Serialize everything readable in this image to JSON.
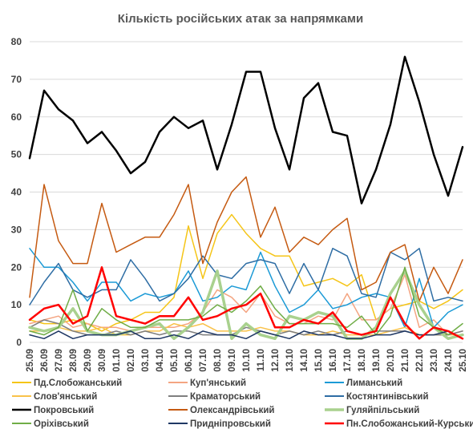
{
  "chart_data": {
    "type": "line",
    "title": "Кількість російських атак за напрямками",
    "xlabel": "",
    "ylabel": "",
    "ylim": [
      0,
      80
    ],
    "yticks": [
      0,
      10,
      20,
      30,
      40,
      50,
      60,
      70,
      80
    ],
    "grid": "horizontal",
    "legend_position": "bottom",
    "categories": [
      "25.09",
      "26.09",
      "27.09",
      "28.09",
      "29.09",
      "30.09",
      "01.10",
      "02.10",
      "03.10",
      "04.10",
      "05.10",
      "06.10",
      "07.10",
      "08.10",
      "09.10",
      "10.10",
      "11.10",
      "12.10",
      "13.10",
      "14.10",
      "15.10",
      "16.10",
      "17.10",
      "18.10",
      "19.10",
      "20.10",
      "21.10",
      "22.10",
      "23.10",
      "24.10",
      "25.10"
    ],
    "series": [
      {
        "name": "Пд.Слобожанський",
        "color": "#f5c518",
        "width": 1.5,
        "values": [
          6,
          5,
          5,
          6,
          5,
          3,
          5,
          6,
          8,
          8,
          12,
          31,
          17,
          29,
          34,
          29,
          25,
          23,
          23,
          15,
          16,
          17,
          15,
          18,
          6,
          9,
          10,
          11,
          9,
          11,
          14
        ]
      },
      {
        "name": "Куп'янський",
        "color": "#f4a582",
        "width": 1.5,
        "values": [
          5,
          6,
          7,
          4,
          5,
          4,
          4,
          3,
          4,
          4,
          4,
          5,
          8,
          14,
          12,
          8,
          13,
          7,
          5,
          5,
          7,
          6,
          13,
          6,
          6,
          9,
          18,
          4,
          6,
          2,
          3
        ]
      },
      {
        "name": "Лиманський",
        "color": "#1b9ad6",
        "width": 1.5,
        "values": [
          25,
          20,
          20,
          16,
          11,
          16,
          16,
          11,
          13,
          12,
          13,
          19,
          11,
          12,
          15,
          14,
          24,
          15,
          8,
          10,
          14,
          9,
          10,
          12,
          13,
          12,
          4,
          17,
          4,
          8,
          10
        ]
      },
      {
        "name": "Слов'янський",
        "color": "#f9c24a",
        "width": 1.5,
        "values": [
          3,
          3,
          4,
          3,
          3,
          4,
          2,
          2,
          3,
          3,
          5,
          4,
          5,
          3,
          3,
          3,
          4,
          3,
          3,
          2,
          2,
          3,
          2,
          2,
          2,
          3,
          4,
          2,
          2,
          2,
          2
        ]
      },
      {
        "name": "Краматорський",
        "color": "#7f7f7f",
        "width": 1.5,
        "values": [
          4,
          6,
          5,
          3,
          2,
          2,
          3,
          2,
          3,
          2,
          3,
          3,
          2,
          2,
          2,
          4,
          3,
          2,
          3,
          2,
          3,
          2,
          3,
          2,
          3,
          3,
          3,
          2,
          2,
          2,
          3
        ]
      },
      {
        "name": "Костянтинівський",
        "color": "#2e6da4",
        "width": 1.5,
        "values": [
          10,
          16,
          21,
          14,
          12,
          14,
          14,
          22,
          17,
          11,
          13,
          17,
          23,
          18,
          17,
          21,
          22,
          21,
          13,
          21,
          14,
          25,
          23,
          13,
          12,
          24,
          22,
          25,
          11,
          12,
          11
        ]
      },
      {
        "name": "Покровський",
        "color": "#000000",
        "width": 2.5,
        "values": [
          49,
          67,
          62,
          59,
          53,
          56,
          51,
          45,
          48,
          56,
          60,
          57,
          59,
          46,
          58,
          72,
          72,
          57,
          46,
          65,
          69,
          56,
          55,
          37,
          46,
          58,
          76,
          64,
          50,
          39,
          52
        ]
      },
      {
        "name": "Олександрівський",
        "color": "#c55a11",
        "width": 1.5,
        "values": [
          12,
          42,
          27,
          21,
          21,
          37,
          24,
          26,
          28,
          28,
          34,
          42,
          21,
          32,
          40,
          44,
          28,
          36,
          24,
          28,
          26,
          30,
          33,
          14,
          16,
          24,
          26,
          11,
          20,
          13,
          22
        ]
      },
      {
        "name": "Гуляйпільський",
        "color": "#a9d18e",
        "width": 3.5,
        "values": [
          4,
          3,
          4,
          9,
          3,
          2,
          2,
          3,
          4,
          5,
          1,
          4,
          8,
          19,
          1,
          5,
          2,
          1,
          7,
          6,
          8,
          7,
          1,
          1,
          4,
          13,
          19,
          10,
          4,
          1,
          2
        ]
      },
      {
        "name": "Оріхівський",
        "color": "#70ad47",
        "width": 1.5,
        "values": [
          3,
          2,
          4,
          14,
          3,
          9,
          6,
          4,
          4,
          6,
          6,
          6,
          7,
          10,
          8,
          11,
          15,
          9,
          5,
          5,
          5,
          5,
          4,
          7,
          2,
          7,
          20,
          7,
          4,
          2,
          5
        ]
      },
      {
        "name": "Придніпровський",
        "color": "#1f3864",
        "width": 1.5,
        "values": [
          2,
          1,
          3,
          1,
          2,
          2,
          2,
          3,
          1,
          1,
          2,
          1,
          3,
          2,
          2,
          1,
          3,
          2,
          1,
          3,
          2,
          2,
          1,
          1,
          2,
          2,
          3,
          2,
          2,
          3,
          1
        ]
      },
      {
        "name": "Пн.Слобожанський-Курський",
        "color": "#ff0000",
        "width": 2.5,
        "values": [
          6,
          9,
          10,
          5,
          7,
          20,
          7,
          6,
          5,
          7,
          7,
          12,
          6,
          7,
          9,
          10,
          13,
          4,
          4,
          6,
          5,
          8,
          3,
          2,
          3,
          12,
          5,
          1,
          4,
          3,
          1
        ]
      }
    ],
    "legend_rows": [
      [
        0,
        1,
        2
      ],
      [
        3,
        4,
        5
      ],
      [
        6,
        7,
        8
      ],
      [
        9,
        10,
        11
      ]
    ]
  }
}
